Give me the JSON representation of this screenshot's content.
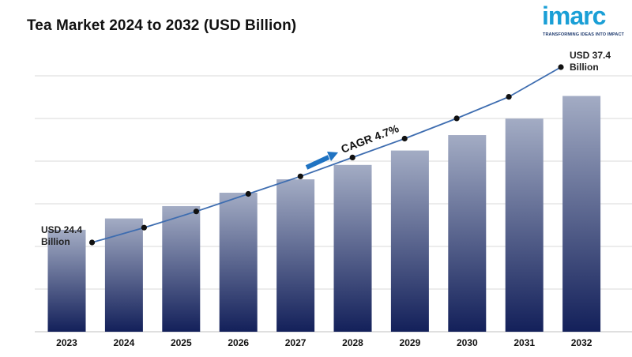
{
  "header": {
    "title": "Tea Market 2024 to 2032 (USD Billion)"
  },
  "logo": {
    "word": "imarc",
    "tagline": "TRANSFORMING IDEAS INTO IMPACT",
    "color": "#1a9fd6"
  },
  "annotations": {
    "start_line1": "USD 24.4",
    "start_line2": "Billion",
    "end_line1": "USD 37.4",
    "end_line2": "Billion",
    "cagr": "CAGR 4.7%"
  },
  "chart_data": {
    "type": "bar",
    "title": "Tea Market 2024 to 2032 (USD Billion)",
    "categories": [
      "2023",
      "2024",
      "2025",
      "2026",
      "2027",
      "2028",
      "2029",
      "2030",
      "2031",
      "2032"
    ],
    "series": [
      {
        "values": [
          24.4,
          25.5,
          26.7,
          28.0,
          29.3,
          30.7,
          32.1,
          33.6,
          35.2,
          37.4
        ]
      }
    ],
    "line_values": [
      24.4,
      25.5,
      26.7,
      28.0,
      29.3,
      30.7,
      32.1,
      33.6,
      35.2,
      37.4
    ],
    "ylim": [
      0,
      40
    ],
    "grid": true,
    "colors": {
      "bar_top": "#a3acc4",
      "bar_bottom": "#13205a",
      "line": "#3e6db0",
      "marker": "#111111",
      "arrow": "#1f73c2",
      "grid": "#d9d9d9"
    }
  }
}
